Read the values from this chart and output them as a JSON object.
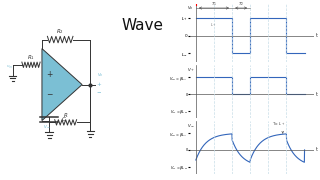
{
  "title": "Wave",
  "bg_color": "#ffffff",
  "circuit_color": "#7bbfd4",
  "wire_color": "#333333",
  "wave_color": "#3366bb",
  "grid_color": "#c8dde8",
  "top_wave": {
    "ylim": [
      -1.5,
      1.8
    ],
    "ytick_vals": [
      1,
      0,
      -1
    ],
    "ytick_labels": [
      "$L_+$",
      "0",
      "$L_-$"
    ],
    "ylabel": "$v_o$"
  },
  "mid_wave": {
    "ylim": [
      -0.85,
      1.05
    ],
    "ytick_vals": [
      0.6,
      0,
      -0.6
    ],
    "ytick_labels": [
      "$V_{TH}=\\beta L_+$",
      "0",
      "$V_{TL}=\\beta L_-$"
    ],
    "ylabel": "$v_+$"
  },
  "bot_wave": {
    "ylim": [
      -0.85,
      1.05
    ],
    "ytick_vals": [
      0.6,
      0,
      -0.6
    ],
    "ytick_labels": [
      "$V_{TH}=\\beta L_+$",
      "0",
      "$V_{TL}=\\beta L_-$"
    ],
    "ylabel": "$v_-$",
    "annotation": "To $L_+$"
  },
  "period": 6,
  "xlim": [
    -0.3,
    6.5
  ]
}
